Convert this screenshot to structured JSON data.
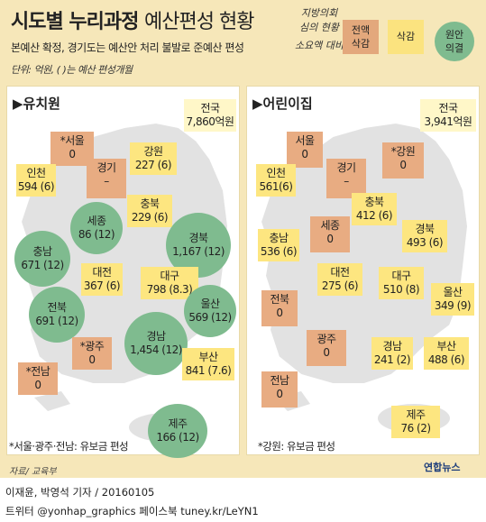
{
  "title": {
    "bold": "시도별 누리과정",
    "light": "예산편성 현황"
  },
  "subtitle": "본예산 확정, 경기도는 예산안 처리 불발로 준예산 편성",
  "unit_note": "단위: 억원, ( )는 예산 편성개월",
  "legend": {
    "cut_caption_line1": "지방의회",
    "cut_caption_line2": "심의 현황",
    "small_caption": "소요액 대비",
    "cut": {
      "line1": "전액",
      "line2": "삭감"
    },
    "partial": {
      "line1": "삭감"
    },
    "full": {
      "line1": "원안",
      "line2": "의결"
    }
  },
  "colors": {
    "cut": "#e8ac82",
    "partial": "#fde680",
    "full": "#7fbb8f",
    "background": "#f6e7b9",
    "map": "#e2e2e2"
  },
  "kindergarten": {
    "title": "▶유치원",
    "total": {
      "name": "전국",
      "value": "7,860억원"
    },
    "regions": [
      {
        "id": "seoul",
        "name": "*서울",
        "value": "0",
        "status": "cut"
      },
      {
        "id": "gangwon",
        "name": "강원",
        "value": "227 (6)",
        "status": "partial"
      },
      {
        "id": "incheon",
        "name": "인천",
        "value": "594 (6)",
        "status": "partial"
      },
      {
        "id": "gyeonggi",
        "name": "경기",
        "value": "–",
        "status": "cut"
      },
      {
        "id": "chungbuk",
        "name": "충북",
        "value": "229 (6)",
        "status": "partial"
      },
      {
        "id": "sejong",
        "name": "세종",
        "value": "86 (12)",
        "status": "full"
      },
      {
        "id": "chungnam",
        "name": "충남",
        "value": "671 (12)",
        "status": "full"
      },
      {
        "id": "gyeongbuk",
        "name": "경북",
        "value": "1,167 (12)",
        "status": "full"
      },
      {
        "id": "daejeon",
        "name": "대전",
        "value": "367 (6)",
        "status": "partial"
      },
      {
        "id": "daegu",
        "name": "대구",
        "value": "798 (8.3)",
        "status": "partial"
      },
      {
        "id": "jeonbuk",
        "name": "전북",
        "value": "691 (12)",
        "status": "full"
      },
      {
        "id": "ulsan",
        "name": "울산",
        "value": "569 (12)",
        "status": "full"
      },
      {
        "id": "gwangju",
        "name": "*광주",
        "value": "0",
        "status": "cut"
      },
      {
        "id": "gyeongnam",
        "name": "경남",
        "value": "1,454 (12)",
        "status": "full"
      },
      {
        "id": "busan",
        "name": "부산",
        "value": "841 (7.6)",
        "status": "partial"
      },
      {
        "id": "jeonnam",
        "name": "*전남",
        "value": "0",
        "status": "cut"
      },
      {
        "id": "jeju",
        "name": "제주",
        "value": "166 (12)",
        "status": "full"
      }
    ],
    "note": "*서울·광주·전남: 유보금 편성"
  },
  "daycare": {
    "title": "▶어린이집",
    "total": {
      "name": "전국",
      "value": "3,941억원"
    },
    "regions": [
      {
        "id": "seoul",
        "name": "서울",
        "value": "0",
        "status": "cut"
      },
      {
        "id": "gangwon",
        "name": "*강원",
        "value": "0",
        "status": "cut"
      },
      {
        "id": "incheon",
        "name": "인천",
        "value": "561(6)",
        "status": "partial"
      },
      {
        "id": "gyeonggi",
        "name": "경기",
        "value": "–",
        "status": "cut"
      },
      {
        "id": "chungbuk",
        "name": "충북",
        "value": "412 (6)",
        "status": "partial"
      },
      {
        "id": "sejong",
        "name": "세종",
        "value": "0",
        "status": "cut"
      },
      {
        "id": "chungnam",
        "name": "충남",
        "value": "536 (6)",
        "status": "partial"
      },
      {
        "id": "gyeongbuk",
        "name": "경북",
        "value": "493 (6)",
        "status": "partial"
      },
      {
        "id": "daejeon",
        "name": "대전",
        "value": "275 (6)",
        "status": "partial"
      },
      {
        "id": "daegu",
        "name": "대구",
        "value": "510 (8)",
        "status": "partial"
      },
      {
        "id": "ulsan",
        "name": "울산",
        "value": "349 (9)",
        "status": "partial"
      },
      {
        "id": "jeonbuk",
        "name": "전북",
        "value": "0",
        "status": "cut"
      },
      {
        "id": "gwangju",
        "name": "광주",
        "value": "0",
        "status": "cut"
      },
      {
        "id": "gyeongnam",
        "name": "경남",
        "value": "241 (2)",
        "status": "partial"
      },
      {
        "id": "busan",
        "name": "부산",
        "value": "488 (6)",
        "status": "partial"
      },
      {
        "id": "jeonnam",
        "name": "전남",
        "value": "0",
        "status": "cut"
      },
      {
        "id": "jeju",
        "name": "제주",
        "value": "76 (2)",
        "status": "partial"
      }
    ],
    "note": "*강원: 유보금 편성"
  },
  "source": "자료/ 교육부",
  "logo": "연합뉴스",
  "credit": "이재윤, 박영석 기자 / 20160105",
  "sns": "트위터 @yonhap_graphics  페이스북 tuney.kr/LeYN1"
}
